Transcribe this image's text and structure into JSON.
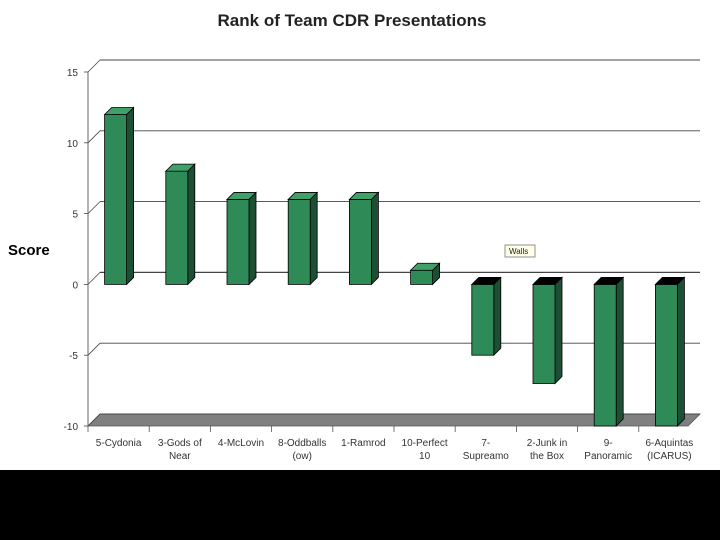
{
  "chart_data": {
    "type": "bar",
    "title": "Rank of Team CDR Presentations",
    "xlabel": "",
    "ylabel": "Score",
    "ylim": [
      -10,
      15
    ],
    "yticks": [
      15,
      10,
      5,
      0,
      -5,
      -10
    ],
    "grid": true,
    "categories": [
      [
        "5-Cydonia"
      ],
      [
        "3-Gods of",
        "Near"
      ],
      [
        "4-McLovin"
      ],
      [
        "8-Oddballs",
        "(ow)"
      ],
      [
        "1-Ramrod"
      ],
      [
        "10-Perfect",
        "10"
      ],
      [
        "7-",
        "Supreamo"
      ],
      [
        "2-Junk in",
        "the Box"
      ],
      [
        "9-",
        "Panoramic"
      ],
      [
        "6-Aquintas",
        "(ICARUS)"
      ]
    ],
    "values": [
      12,
      8,
      6,
      6,
      6,
      1,
      -5,
      -7,
      -10,
      -10
    ],
    "tooltip": "Walls",
    "colors": {
      "bar_front": "#2e8b57",
      "bar_side": "#1d4f34",
      "bar_top": "#3fa06a",
      "bar_bottom": "#000000",
      "grid": "#444444",
      "floor": "#808080"
    }
  }
}
